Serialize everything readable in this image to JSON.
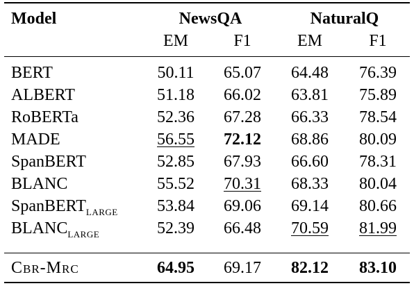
{
  "table": {
    "header": {
      "model_label": "Model",
      "groups": [
        "NewsQA",
        "NaturalQ"
      ],
      "metrics": [
        "EM",
        "F1",
        "EM",
        "F1"
      ]
    },
    "rows": [
      {
        "model": "BERT",
        "model_sub": "",
        "values": [
          "50.11",
          "65.07",
          "64.48",
          "76.39"
        ],
        "bold": [
          false,
          false,
          false,
          false
        ],
        "underline": [
          false,
          false,
          false,
          false
        ]
      },
      {
        "model": "ALBERT",
        "model_sub": "",
        "values": [
          "51.18",
          "66.02",
          "63.81",
          "75.89"
        ],
        "bold": [
          false,
          false,
          false,
          false
        ],
        "underline": [
          false,
          false,
          false,
          false
        ]
      },
      {
        "model": "RoBERTa",
        "model_sub": "",
        "values": [
          "52.36",
          "67.28",
          "66.33",
          "78.54"
        ],
        "bold": [
          false,
          false,
          false,
          false
        ],
        "underline": [
          false,
          false,
          false,
          false
        ]
      },
      {
        "model": "MADE",
        "model_sub": "",
        "values": [
          "56.55",
          "72.12",
          "68.86",
          "80.09"
        ],
        "bold": [
          false,
          true,
          false,
          false
        ],
        "underline": [
          true,
          false,
          false,
          false
        ]
      },
      {
        "model": "SpanBERT",
        "model_sub": "",
        "values": [
          "52.85",
          "67.93",
          "66.60",
          "78.31"
        ],
        "bold": [
          false,
          false,
          false,
          false
        ],
        "underline": [
          false,
          false,
          false,
          false
        ]
      },
      {
        "model": "BLANC",
        "model_sub": "",
        "values": [
          "55.52",
          "70.31",
          "68.33",
          "80.04"
        ],
        "bold": [
          false,
          false,
          false,
          false
        ],
        "underline": [
          false,
          true,
          false,
          false
        ]
      },
      {
        "model": "SpanBERT",
        "model_sub": "LARGE",
        "values": [
          "53.84",
          "69.06",
          "69.14",
          "80.66"
        ],
        "bold": [
          false,
          false,
          false,
          false
        ],
        "underline": [
          false,
          false,
          false,
          false
        ]
      },
      {
        "model": "BLANC",
        "model_sub": "LARGE",
        "values": [
          "52.39",
          "66.48",
          "70.59",
          "81.99"
        ],
        "bold": [
          false,
          false,
          false,
          false
        ],
        "underline": [
          false,
          false,
          true,
          true
        ]
      }
    ],
    "final_row": {
      "model": "Cbr-Mrc",
      "values": [
        "64.95",
        "69.17",
        "82.12",
        "83.10"
      ],
      "bold": [
        true,
        false,
        true,
        true
      ],
      "underline": [
        false,
        false,
        false,
        false
      ]
    }
  }
}
